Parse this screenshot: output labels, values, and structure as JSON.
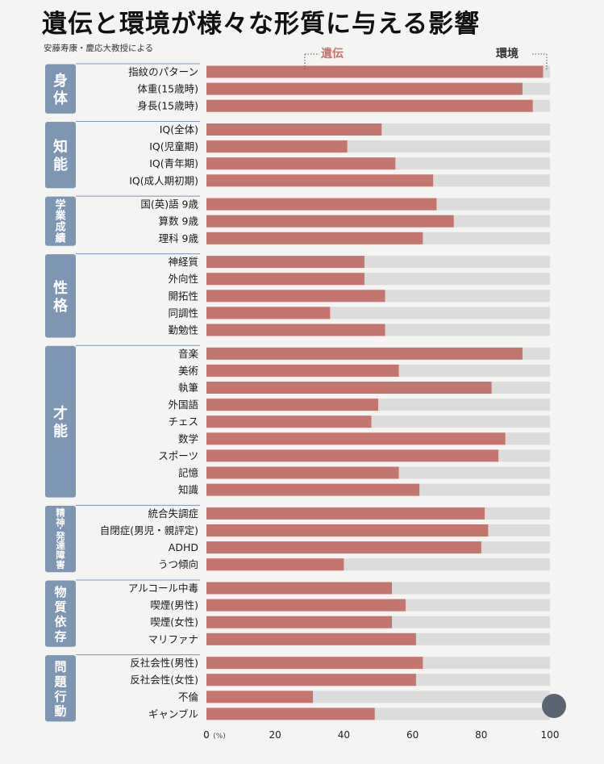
{
  "title": "遺伝と環境が様々な形質に与える影響",
  "subtitle": "安藤寿康・慶応大教授による",
  "colors": {
    "genetic": "#c4766e",
    "environment": "#dcdcdc",
    "group_box": "#7d96b3",
    "legend_genetic_text": "#c4766e",
    "legend_env_text": "#333333"
  },
  "chart_data": {
    "type": "bar",
    "orientation": "horizontal",
    "stacked": true,
    "legend": [
      {
        "name": "遺伝",
        "position": "top"
      },
      {
        "name": "環境",
        "position": "top-right"
      }
    ],
    "x_axis": {
      "range": [
        0,
        100
      ],
      "ticks": [
        0,
        20,
        40,
        60,
        80,
        100
      ],
      "unit": "(%)"
    },
    "groups": [
      {
        "name": "身体",
        "items": [
          {
            "label": "指紋のパターン",
            "value": 98
          },
          {
            "label": "体重(15歳時)",
            "value": 92
          },
          {
            "label": "身長(15歳時)",
            "value": 95
          }
        ]
      },
      {
        "name": "知能",
        "items": [
          {
            "label": "IQ(全体)",
            "value": 51
          },
          {
            "label": "IQ(児童期)",
            "value": 41
          },
          {
            "label": "IQ(青年期)",
            "value": 55
          },
          {
            "label": "IQ(成人期初期)",
            "value": 66
          }
        ]
      },
      {
        "name": "学業成績",
        "items": [
          {
            "label": "国(英)語 9歳",
            "value": 67
          },
          {
            "label": "算数 9歳",
            "value": 72
          },
          {
            "label": "理科 9歳",
            "value": 63
          }
        ]
      },
      {
        "name": "性格",
        "items": [
          {
            "label": "神経質",
            "value": 46
          },
          {
            "label": "外向性",
            "value": 46
          },
          {
            "label": "開拓性",
            "value": 52
          },
          {
            "label": "同調性",
            "value": 36
          },
          {
            "label": "勤勉性",
            "value": 52
          }
        ]
      },
      {
        "name": "才能",
        "items": [
          {
            "label": "音楽",
            "value": 92
          },
          {
            "label": "美術",
            "value": 56
          },
          {
            "label": "執筆",
            "value": 83
          },
          {
            "label": "外国語",
            "value": 50
          },
          {
            "label": "チェス",
            "value": 48
          },
          {
            "label": "数学",
            "value": 87
          },
          {
            "label": "スポーツ",
            "value": 85
          },
          {
            "label": "記憶",
            "value": 56
          },
          {
            "label": "知識",
            "value": 62
          }
        ]
      },
      {
        "name": "精神・発達障害",
        "items": [
          {
            "label": "統合失調症",
            "value": 81
          },
          {
            "label": "自閉症(男児・親評定)",
            "value": 82
          },
          {
            "label": "ADHD",
            "value": 80
          },
          {
            "label": "うつ傾向",
            "value": 40
          }
        ]
      },
      {
        "name": "物質依存",
        "items": [
          {
            "label": "アルコール中毒",
            "value": 54
          },
          {
            "label": "喫煙(男性)",
            "value": 58
          },
          {
            "label": "喫煙(女性)",
            "value": 54
          },
          {
            "label": "マリファナ",
            "value": 61
          }
        ]
      },
      {
        "name": "問題行動",
        "items": [
          {
            "label": "反社会性(男性)",
            "value": 63
          },
          {
            "label": "反社会性(女性)",
            "value": 61
          },
          {
            "label": "不倫",
            "value": 31
          },
          {
            "label": "ギャンブル",
            "value": 49
          }
        ]
      }
    ]
  }
}
